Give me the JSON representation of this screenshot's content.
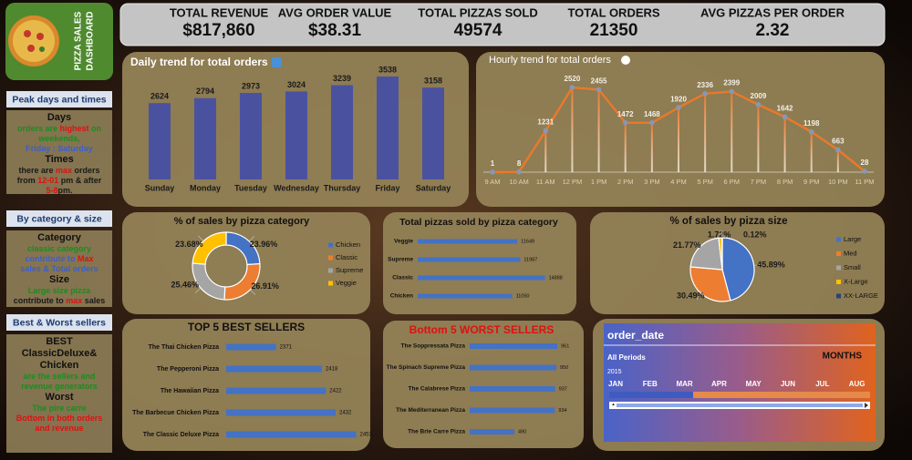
{
  "header": {
    "title": [
      "PIZZA SALES",
      "DASHBOARD"
    ]
  },
  "kpis": [
    {
      "label": "TOTAL REVENUE",
      "value": "$817,860"
    },
    {
      "label": "AVG ORDER VALUE",
      "value": "$38.31"
    },
    {
      "label": "TOTAL PIZZAS SOLD",
      "value": "49574"
    },
    {
      "label": "TOTAL ORDERS",
      "value": "21350"
    },
    {
      "label": "AVG PIZZAS PER ORDER",
      "value": "2.32"
    }
  ],
  "notes": [
    {
      "title": "Peak days and times",
      "lines": [
        {
          "heading": "Days"
        },
        {
          "segments": [
            {
              "text": "orders are ",
              "color": "#1f8a1f"
            },
            {
              "text": "highest",
              "color": "#e01010"
            },
            {
              "text": " on",
              "color": "#1f8a1f"
            }
          ]
        },
        {
          "segments": [
            {
              "text": "weekends,",
              "color": "#1f8a1f"
            }
          ]
        },
        {
          "segments": [
            {
              "text": "Friday : Saturday",
              "color": "#3a5fcd"
            }
          ]
        },
        {
          "heading": "Times"
        },
        {
          "segments": [
            {
              "text": "there are ",
              "color": "#1a1a1a"
            },
            {
              "text": "max",
              "color": "#e01010"
            },
            {
              "text": " orders",
              "color": "#1a1a1a"
            }
          ]
        },
        {
          "segments": [
            {
              "text": "from ",
              "color": "#1a1a1a"
            },
            {
              "text": "12-01",
              "color": "#e01010"
            },
            {
              "text": " pm & after",
              "color": "#1a1a1a"
            }
          ]
        },
        {
          "segments": [
            {
              "text": "5-8",
              "color": "#e01010"
            },
            {
              "text": "pm.",
              "color": "#1a1a1a"
            }
          ]
        }
      ]
    },
    {
      "title": "By category & size",
      "lines": [
        {
          "heading": "Category"
        },
        {
          "segments": [
            {
              "text": "classic category",
              "color": "#1f8a1f"
            }
          ]
        },
        {
          "segments": [
            {
              "text": "contribute to ",
              "color": "#3a5fcd"
            },
            {
              "text": "Max",
              "color": "#e01010"
            }
          ]
        },
        {
          "segments": [
            {
              "text": "sales & Total orders",
              "color": "#3a5fcd"
            }
          ]
        },
        {
          "heading": "Size"
        },
        {
          "segments": [
            {
              "text": "Large size pizza",
              "color": "#1f8a1f"
            }
          ]
        },
        {
          "segments": [
            {
              "text": "contribute to ",
              "color": "#1a1a1a"
            },
            {
              "text": "max",
              "color": "#e01010"
            },
            {
              "text": " sales",
              "color": "#1a1a1a"
            }
          ]
        }
      ]
    },
    {
      "title": "Best & Worst sellers",
      "lines": [
        {
          "heading": "BEST"
        },
        {
          "heading": "ClassicDeluxe&"
        },
        {
          "heading": "Chicken"
        },
        {
          "segments": [
            {
              "text": "are the sellers and",
              "color": "#1f8a1f"
            }
          ]
        },
        {
          "segments": [
            {
              "text": "revenue generators",
              "color": "#1f8a1f"
            }
          ]
        },
        {
          "heading": "Worst"
        },
        {
          "segments": [
            {
              "text": "The pire carre",
              "color": "#1f8a1f"
            }
          ]
        },
        {
          "segments": [
            {
              "text": "Bottom in both orders",
              "color": "#e01010"
            }
          ]
        },
        {
          "segments": [
            {
              "text": "and revenue",
              "color": "#e01010"
            }
          ]
        }
      ]
    }
  ],
  "chart_data": [
    {
      "type": "bar",
      "title": "Daily trend for total orders",
      "categories": [
        "Sunday",
        "Monday",
        "Tuesday",
        "Wednesday",
        "Thursday",
        "Friday",
        "Saturday"
      ],
      "values": [
        2624,
        2794,
        2973,
        3024,
        3239,
        3538,
        3158
      ],
      "color": "#4a52a0"
    },
    {
      "type": "line",
      "title": "Hourly trend for total orders",
      "categories": [
        "9 AM",
        "10 AM",
        "11 AM",
        "12 PM",
        "1 PM",
        "2 PM",
        "3 PM",
        "4 PM",
        "5 PM",
        "6 PM",
        "7 PM",
        "8 PM",
        "9 PM",
        "10 PM",
        "11 PM"
      ],
      "values": [
        1,
        8,
        1231,
        2520,
        2455,
        1472,
        1468,
        1920,
        2336,
        2399,
        2009,
        1642,
        1198,
        663,
        28
      ],
      "color": "#e8792b",
      "marker_color": "#8797b5"
    },
    {
      "type": "donut",
      "title": "% of sales by pizza category",
      "categories": [
        "Chicken",
        "Classic",
        "Supreme",
        "Veggie"
      ],
      "values": [
        23.96,
        26.91,
        25.46,
        23.68
      ],
      "value_labels": [
        "23.96%",
        "26.91%",
        "25.46%",
        "23.68%"
      ],
      "colors": [
        "#4472c4",
        "#ed7d31",
        "#a5a5a5",
        "#ffc000"
      ],
      "legend": "right"
    },
    {
      "type": "hbar",
      "title": "Total pizzas sold by pizza category",
      "categories": [
        "Veggie",
        "Supreme",
        "Classic",
        "Chicken"
      ],
      "values": [
        11649,
        11987,
        14888,
        11050
      ],
      "color": "#4472c4",
      "xlim": [
        0,
        16000
      ]
    },
    {
      "type": "pie",
      "title": "% of sales by pizza size",
      "categories": [
        "Large",
        "Med",
        "Small",
        "X-Large",
        "XX-LARGE"
      ],
      "values": [
        45.89,
        30.49,
        21.77,
        1.72,
        0.12
      ],
      "value_labels": [
        "45.89%",
        "30.49%",
        "21.77%",
        "1.72%",
        "0.12%"
      ],
      "colors": [
        "#4472c4",
        "#ed7d31",
        "#a5a5a5",
        "#ffc000",
        "#264478"
      ],
      "legend": "right"
    },
    {
      "type": "hbar",
      "title": "TOP 5 BEST SELLERS",
      "categories": [
        "The Thai Chicken Pizza",
        "The Pepperoni Pizza",
        "The Hawaiian Pizza",
        "The Barbecue Chicken Pizza",
        "The Classic Deluxe Pizza"
      ],
      "values": [
        2371,
        2418,
        2422,
        2432,
        2453
      ],
      "color": "#4472c4",
      "xlim": [
        2320,
        2460
      ]
    },
    {
      "type": "hbar",
      "title": "Bottom 5 WORST SELLERS",
      "categories": [
        "The Soppressata Pizza",
        "The Spinach Supreme Pizza",
        "The Calabrese Pizza",
        "The Mediterranean Pizza",
        "The Brie Carre Pizza"
      ],
      "values": [
        961,
        950,
        937,
        934,
        490
      ],
      "color": "#4472c4",
      "xlim": [
        0,
        1000
      ]
    }
  ],
  "slicer": {
    "field": "order_date",
    "period": "All Periods",
    "level": "MONTHS",
    "year": "2015",
    "months": [
      "JAN",
      "FEB",
      "MAR",
      "APR",
      "MAY",
      "JUN",
      "JUL",
      "AUG"
    ]
  }
}
